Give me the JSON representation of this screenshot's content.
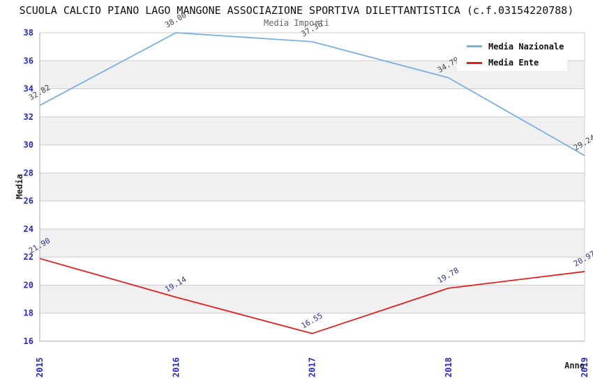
{
  "header": {
    "title": "SCUOLA CALCIO PIANO LAGO MANGONE ASSOCIAZIONE SPORTIVA DILETTANTISTICA (c.f.03154220788)",
    "subtitle": "Media Importi"
  },
  "legend": {
    "items": [
      {
        "label": "Media Nazionale",
        "color": "#78AFE1"
      },
      {
        "label": "Media Ente",
        "color": "#E31E1E"
      }
    ]
  },
  "chart_data": {
    "type": "line",
    "title": "SCUOLA CALCIO PIANO LAGO MANGONE ASSOCIAZIONE SPORTIVA DILETTANTISTICA (c.f.03154220788)",
    "subtitle": "Media Importi",
    "x": [
      2015,
      2016,
      2017,
      2018,
      2019
    ],
    "series": [
      {
        "name": "Media Nazionale",
        "values": [
          32.82,
          38.0,
          37.36,
          34.79,
          29.24
        ],
        "color": "#78AFE1",
        "label_color": "#444444"
      },
      {
        "name": "Media Ente",
        "values": [
          21.9,
          19.14,
          16.55,
          19.78,
          20.97
        ],
        "color": "#E31E1E",
        "label_color": "#323296"
      }
    ],
    "xlabel": "Anno",
    "ylabel": "Media",
    "ylim": [
      16,
      38
    ],
    "ytick_step": 2,
    "grid": true,
    "legend_position": "top-right",
    "band_colors": [
      "#ffffff",
      "#f0f0f0"
    ],
    "gridline_color": "#cccccc",
    "axis_line_color": "#aaaaaa",
    "tick_label_color": "#2828C8",
    "label_decimals": 2
  }
}
